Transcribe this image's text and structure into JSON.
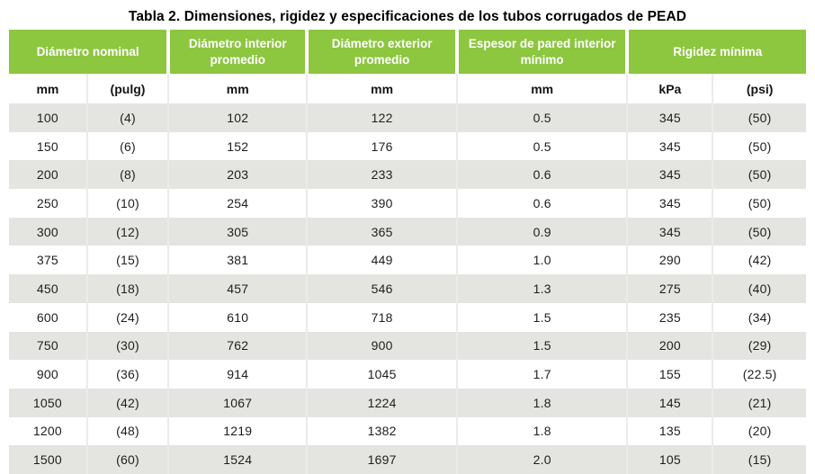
{
  "title": "Tabla 2. Dimensiones, rigidez y especificaciones de los tubos corrugados de PEAD",
  "colors": {
    "header_bg": "#8dc63f",
    "header_text": "#ffffff",
    "row_alt_bg": "#e4e4e1",
    "body_text": "#1e1e1c"
  },
  "table": {
    "column_groups": [
      {
        "label": "Diámetro nominal",
        "span": 2
      },
      {
        "label": "Diámetro interior promedio",
        "span": 1
      },
      {
        "label": "Diámetro exterior promedio",
        "span": 1
      },
      {
        "label": "Espesor de pared interior mínimo",
        "span": 1
      },
      {
        "label": "Rigidez mínima",
        "span": 2
      }
    ],
    "unit_headers": [
      "mm",
      "(pulg)",
      "mm",
      "mm",
      "mm",
      "kPa",
      "(psi)"
    ],
    "rows": [
      [
        "100",
        "(4)",
        "102",
        "122",
        "0.5",
        "345",
        "(50)"
      ],
      [
        "150",
        "(6)",
        "152",
        "176",
        "0.5",
        "345",
        "(50)"
      ],
      [
        "200",
        "(8)",
        "203",
        "233",
        "0.6",
        "345",
        "(50)"
      ],
      [
        "250",
        "(10)",
        "254",
        "390",
        "0.6",
        "345",
        "(50)"
      ],
      [
        "300",
        "(12)",
        "305",
        "365",
        "0.9",
        "345",
        "(50)"
      ],
      [
        "375",
        "(15)",
        "381",
        "449",
        "1.0",
        "290",
        "(42)"
      ],
      [
        "450",
        "(18)",
        "457",
        "546",
        "1.3",
        "275",
        "(40)"
      ],
      [
        "600",
        "(24)",
        "610",
        "718",
        "1.5",
        "235",
        "(34)"
      ],
      [
        "750",
        "(30)",
        "762",
        "900",
        "1.5",
        "200",
        "(29)"
      ],
      [
        "900",
        "(36)",
        "914",
        "1045",
        "1.7",
        "155",
        "(22.5)"
      ],
      [
        "1050",
        "(42)",
        "1067",
        "1224",
        "1.8",
        "145",
        "(21)"
      ],
      [
        "1200",
        "(48)",
        "1219",
        "1382",
        "1.8",
        "135",
        "(20)"
      ],
      [
        "1500",
        "(60)",
        "1524",
        "1697",
        "2.0",
        "105",
        "(15)"
      ]
    ]
  }
}
